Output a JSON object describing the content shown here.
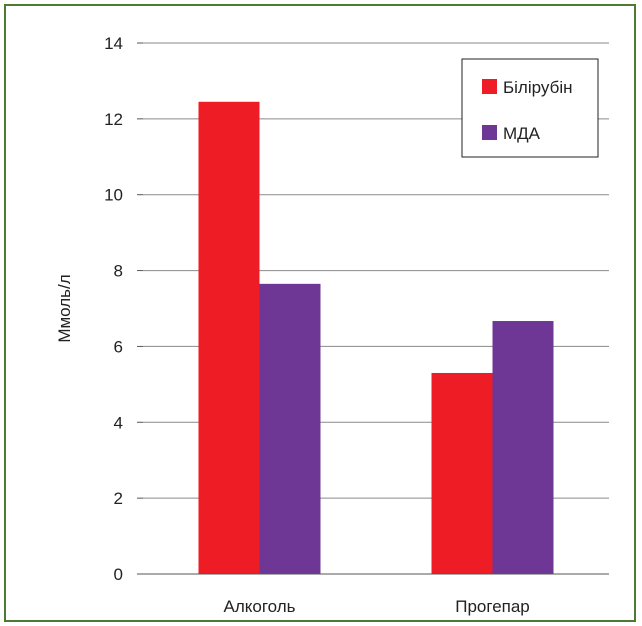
{
  "chart_data": {
    "type": "bar",
    "title": "",
    "xlabel": "",
    "ylabel": "Ммоль/л",
    "ylim": [
      0,
      14
    ],
    "yticks": [
      0,
      2,
      4,
      6,
      8,
      10,
      12,
      14
    ],
    "categories": [
      "Алкоголь",
      "Прогепар"
    ],
    "series": [
      {
        "name": "Білірубін",
        "values": [
          12.45,
          5.3
        ],
        "color": "#ee1c25"
      },
      {
        "name": "МДА",
        "values": [
          7.65,
          6.67
        ],
        "color": "#6f3795"
      }
    ],
    "grid": true,
    "legend_position": "top-right"
  }
}
